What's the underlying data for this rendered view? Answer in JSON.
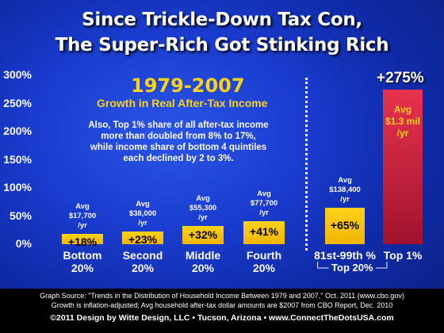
{
  "title_line1": "Since Trickle-Down Tax Con,",
  "title_line2": "The Super-Rich Got Stinking Rich",
  "period": "1979-2007",
  "subtitle": "Growth in Real After-Tax Income",
  "note_lines": [
    "Also, Top 1% share of all after-tax income",
    "more than doubled from 8% to 17%,",
    "while income share of bottom 4 quintiles",
    "each declined by 2 to 3%."
  ],
  "group_bracket": "└─ Top 20% ─┘",
  "footer": {
    "line1": "Graph Source: \"Trends in the Distribution of Household Income Between 1979 and 2007,\" Oct. 2011 (www.cbo.gov)",
    "line2": "Growth is inflation-adjusted; Avg household after-tax dollar amounts are $2007 from CBO Report, Dec. 2010",
    "line3": "©2011 Design by Witte Design, LLC • Tucson, Arizona • www.ConnectTheDotsUSA.com"
  },
  "colors": {
    "bar": "#f2b400",
    "top_bar": "#c0183a",
    "accent": "#ffd21a",
    "background": "#1a3ccf"
  },
  "chart_data": {
    "type": "bar",
    "title": "Since Trickle-Down Tax Con, The Super-Rich Got Stinking Rich",
    "ylim": [
      0,
      300
    ],
    "yticks": [
      "0%",
      "50%",
      "100%",
      "150%",
      "200%",
      "250%",
      "300%"
    ],
    "ytick_values": [
      0,
      50,
      100,
      150,
      200,
      250,
      300
    ],
    "categories": [
      "Bottom 20%",
      "Second 20%",
      "Middle 20%",
      "Fourth 20%",
      "81st-99th %",
      "Top 1%"
    ],
    "values": [
      18,
      23,
      32,
      41,
      65,
      275
    ],
    "value_labels": [
      "+18%",
      "+23%",
      "+32%",
      "+41%",
      "+65%",
      "+275%"
    ],
    "avg_labels": [
      [
        "Avg",
        "$17,700",
        "/yr"
      ],
      [
        "Avg",
        "$38,000",
        "/yr"
      ],
      [
        "Avg",
        "$55,300",
        "/yr"
      ],
      [
        "Avg",
        "$77,700",
        "/yr"
      ],
      [
        "Avg",
        "$138,400",
        "/yr"
      ],
      [
        "Avg",
        "$1.3 mil",
        "/yr"
      ]
    ]
  }
}
